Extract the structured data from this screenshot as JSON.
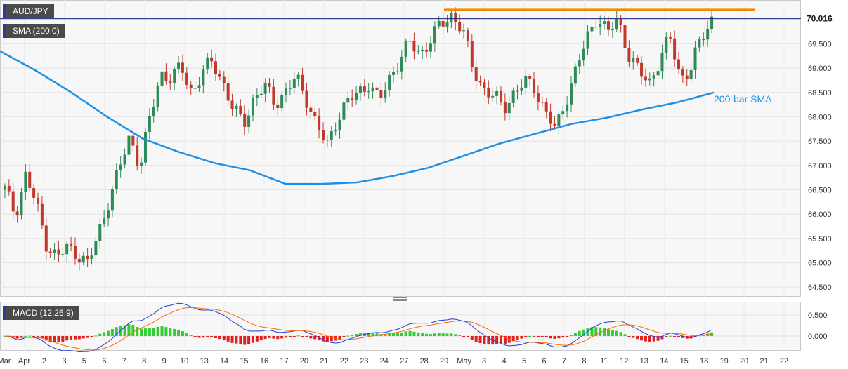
{
  "chart_data": [
    {
      "type": "candlestick",
      "symbol": "AUD/JPY",
      "indicator_label": "SMA (200,0)",
      "last_price": "70.016",
      "ylim": [
        64.3,
        70.4
      ],
      "y_ticks": [
        "70.000",
        "69.500",
        "69.000",
        "68.500",
        "68.000",
        "67.500",
        "67.000",
        "66.500",
        "66.000",
        "65.500",
        "65.000",
        "64.500"
      ],
      "x_ticks": [
        "Mar",
        "Apr",
        "2",
        "3",
        "5",
        "6",
        "7",
        "8",
        "9",
        "10",
        "13",
        "14",
        "15",
        "16",
        "17",
        "20",
        "21",
        "22",
        "23",
        "24",
        "27",
        "28",
        "29",
        "May",
        "3",
        "4",
        "5",
        "6",
        "7",
        "8",
        "11",
        "12",
        "13",
        "14",
        "15",
        "18",
        "19",
        "20",
        "21",
        "22"
      ],
      "annotations": {
        "sma_label": "200-bar SMA"
      },
      "colors": {
        "up": "#2e8b57",
        "down": "#c0392b",
        "sma": "#1e90e6",
        "resistance": "#f08c00",
        "price_line": "#1a237e"
      },
      "sma_200": [
        69.35,
        68.95,
        68.5,
        68.0,
        67.55,
        67.28,
        67.05,
        66.9,
        66.62,
        66.62,
        66.65,
        66.78,
        66.95,
        67.2,
        67.45,
        67.65,
        67.85,
        67.98,
        68.15,
        68.3,
        68.5
      ],
      "resistance_level": 70.2,
      "price_path": [
        66.5,
        66.0,
        66.8,
        66.2,
        65.4,
        65.1,
        65.3,
        65.2,
        64.95,
        65.6,
        66.3,
        66.9,
        67.6,
        67.0,
        68.0,
        68.9,
        68.8,
        69.0,
        68.5,
        68.9,
        69.15,
        68.7,
        68.1,
        67.9,
        68.4,
        68.6,
        68.3,
        68.5,
        68.8,
        68.4,
        67.8,
        67.4,
        68.0,
        68.3,
        68.5,
        68.7,
        68.3,
        68.8,
        69.2,
        69.5,
        69.3,
        69.6,
        69.9,
        70.1,
        69.8,
        69.0,
        68.6,
        68.4,
        68.2,
        68.5,
        68.7,
        68.6,
        68.1,
        67.7,
        68.4,
        69.0,
        69.6,
        70.1,
        69.7,
        70.0,
        69.3,
        68.9,
        68.7,
        69.2,
        69.6,
        68.8,
        69.0,
        69.6,
        70.02
      ],
      "macd": {
        "label": "MACD (12,26,9)",
        "ylim": [
          -0.35,
          0.8
        ],
        "y_ticks": [
          "0.500",
          "0.000"
        ],
        "colors": {
          "macd": "#1f3fd6",
          "signal": "#ff6a00",
          "hist_up": "#32cd32",
          "hist_down": "#e02020"
        }
      }
    }
  ]
}
